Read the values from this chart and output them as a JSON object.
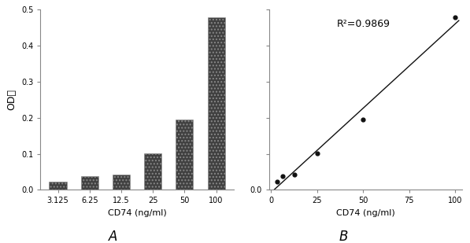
{
  "bar_categories": [
    "3.125",
    "6.25",
    "12.5",
    "25",
    "50",
    "100"
  ],
  "bar_values": [
    0.022,
    0.038,
    0.042,
    0.101,
    0.195,
    0.478
  ],
  "bar_color": "#404040",
  "bar_ylabel": "OD値",
  "bar_xlabel": "CD74 (ng/ml)",
  "bar_ylim": [
    0,
    0.5
  ],
  "bar_yticks": [
    0,
    0.1,
    0.2,
    0.3,
    0.4,
    0.5
  ],
  "scatter_x": [
    3.125,
    6.25,
    12.5,
    25,
    50,
    100
  ],
  "scatter_y": [
    0.022,
    0.038,
    0.042,
    0.101,
    0.195,
    0.478
  ],
  "scatter_xlabel": "CD74 (ng/ml)",
  "scatter_ylim": [
    0,
    0.5
  ],
  "scatter_yticks": [
    0.0,
    0.1,
    0.2,
    0.3,
    0.4,
    0.5
  ],
  "scatter_xticks": [
    0,
    25,
    50,
    75,
    100
  ],
  "r_squared": "R²=0.9869",
  "label_A": "A",
  "label_B": "B",
  "bg_color": "#ffffff",
  "dot_color": "#111111",
  "line_color": "#111111"
}
